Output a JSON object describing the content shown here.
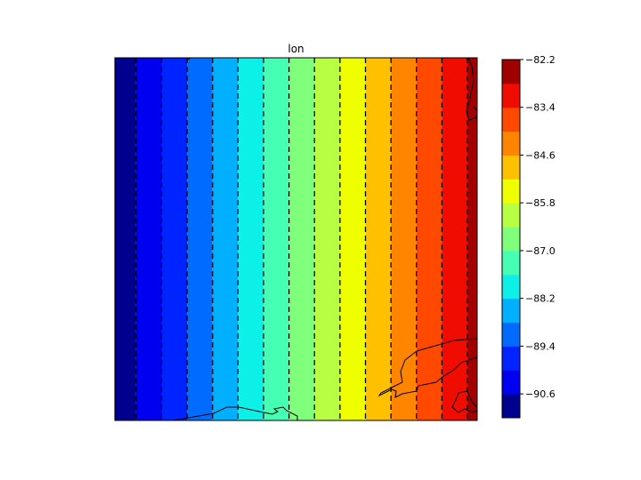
{
  "chart_data": {
    "type": "heatmap",
    "subtype": "filled-contour",
    "title": "lon",
    "xlabel": "",
    "ylabel": "",
    "field": "longitude",
    "xlim": [
      -91.1,
      -82.57
    ],
    "levels": [
      -91.2,
      -90.6,
      -90.0,
      -89.4,
      -88.8,
      -88.2,
      -87.6,
      -87.0,
      -86.4,
      -85.8,
      -85.2,
      -84.6,
      -84.0,
      -83.4,
      -82.8,
      -82.2
    ],
    "band_colors": [
      "#00008f",
      "#0000f0",
      "#0024ff",
      "#006cff",
      "#00b0ff",
      "#0cf0e8",
      "#44ffb4",
      "#80ff7c",
      "#b8ff44",
      "#f0ff00",
      "#ffc000",
      "#ff8400",
      "#ff4800",
      "#f00c00",
      "#a00000"
    ],
    "contour_line_style": "dashed",
    "contour_line_color": "#000000",
    "colorbar": {
      "orientation": "vertical",
      "placement": "right",
      "ticks": [
        "-82.2",
        "-83.4",
        "-84.6",
        "-85.8",
        "-87.0",
        "-88.2",
        "-89.4",
        "-90.6"
      ],
      "tick_values": [
        -82.2,
        -83.4,
        -84.6,
        -85.8,
        -87.0,
        -88.2,
        -89.4,
        -90.6
      ]
    },
    "coastlines": true
  }
}
